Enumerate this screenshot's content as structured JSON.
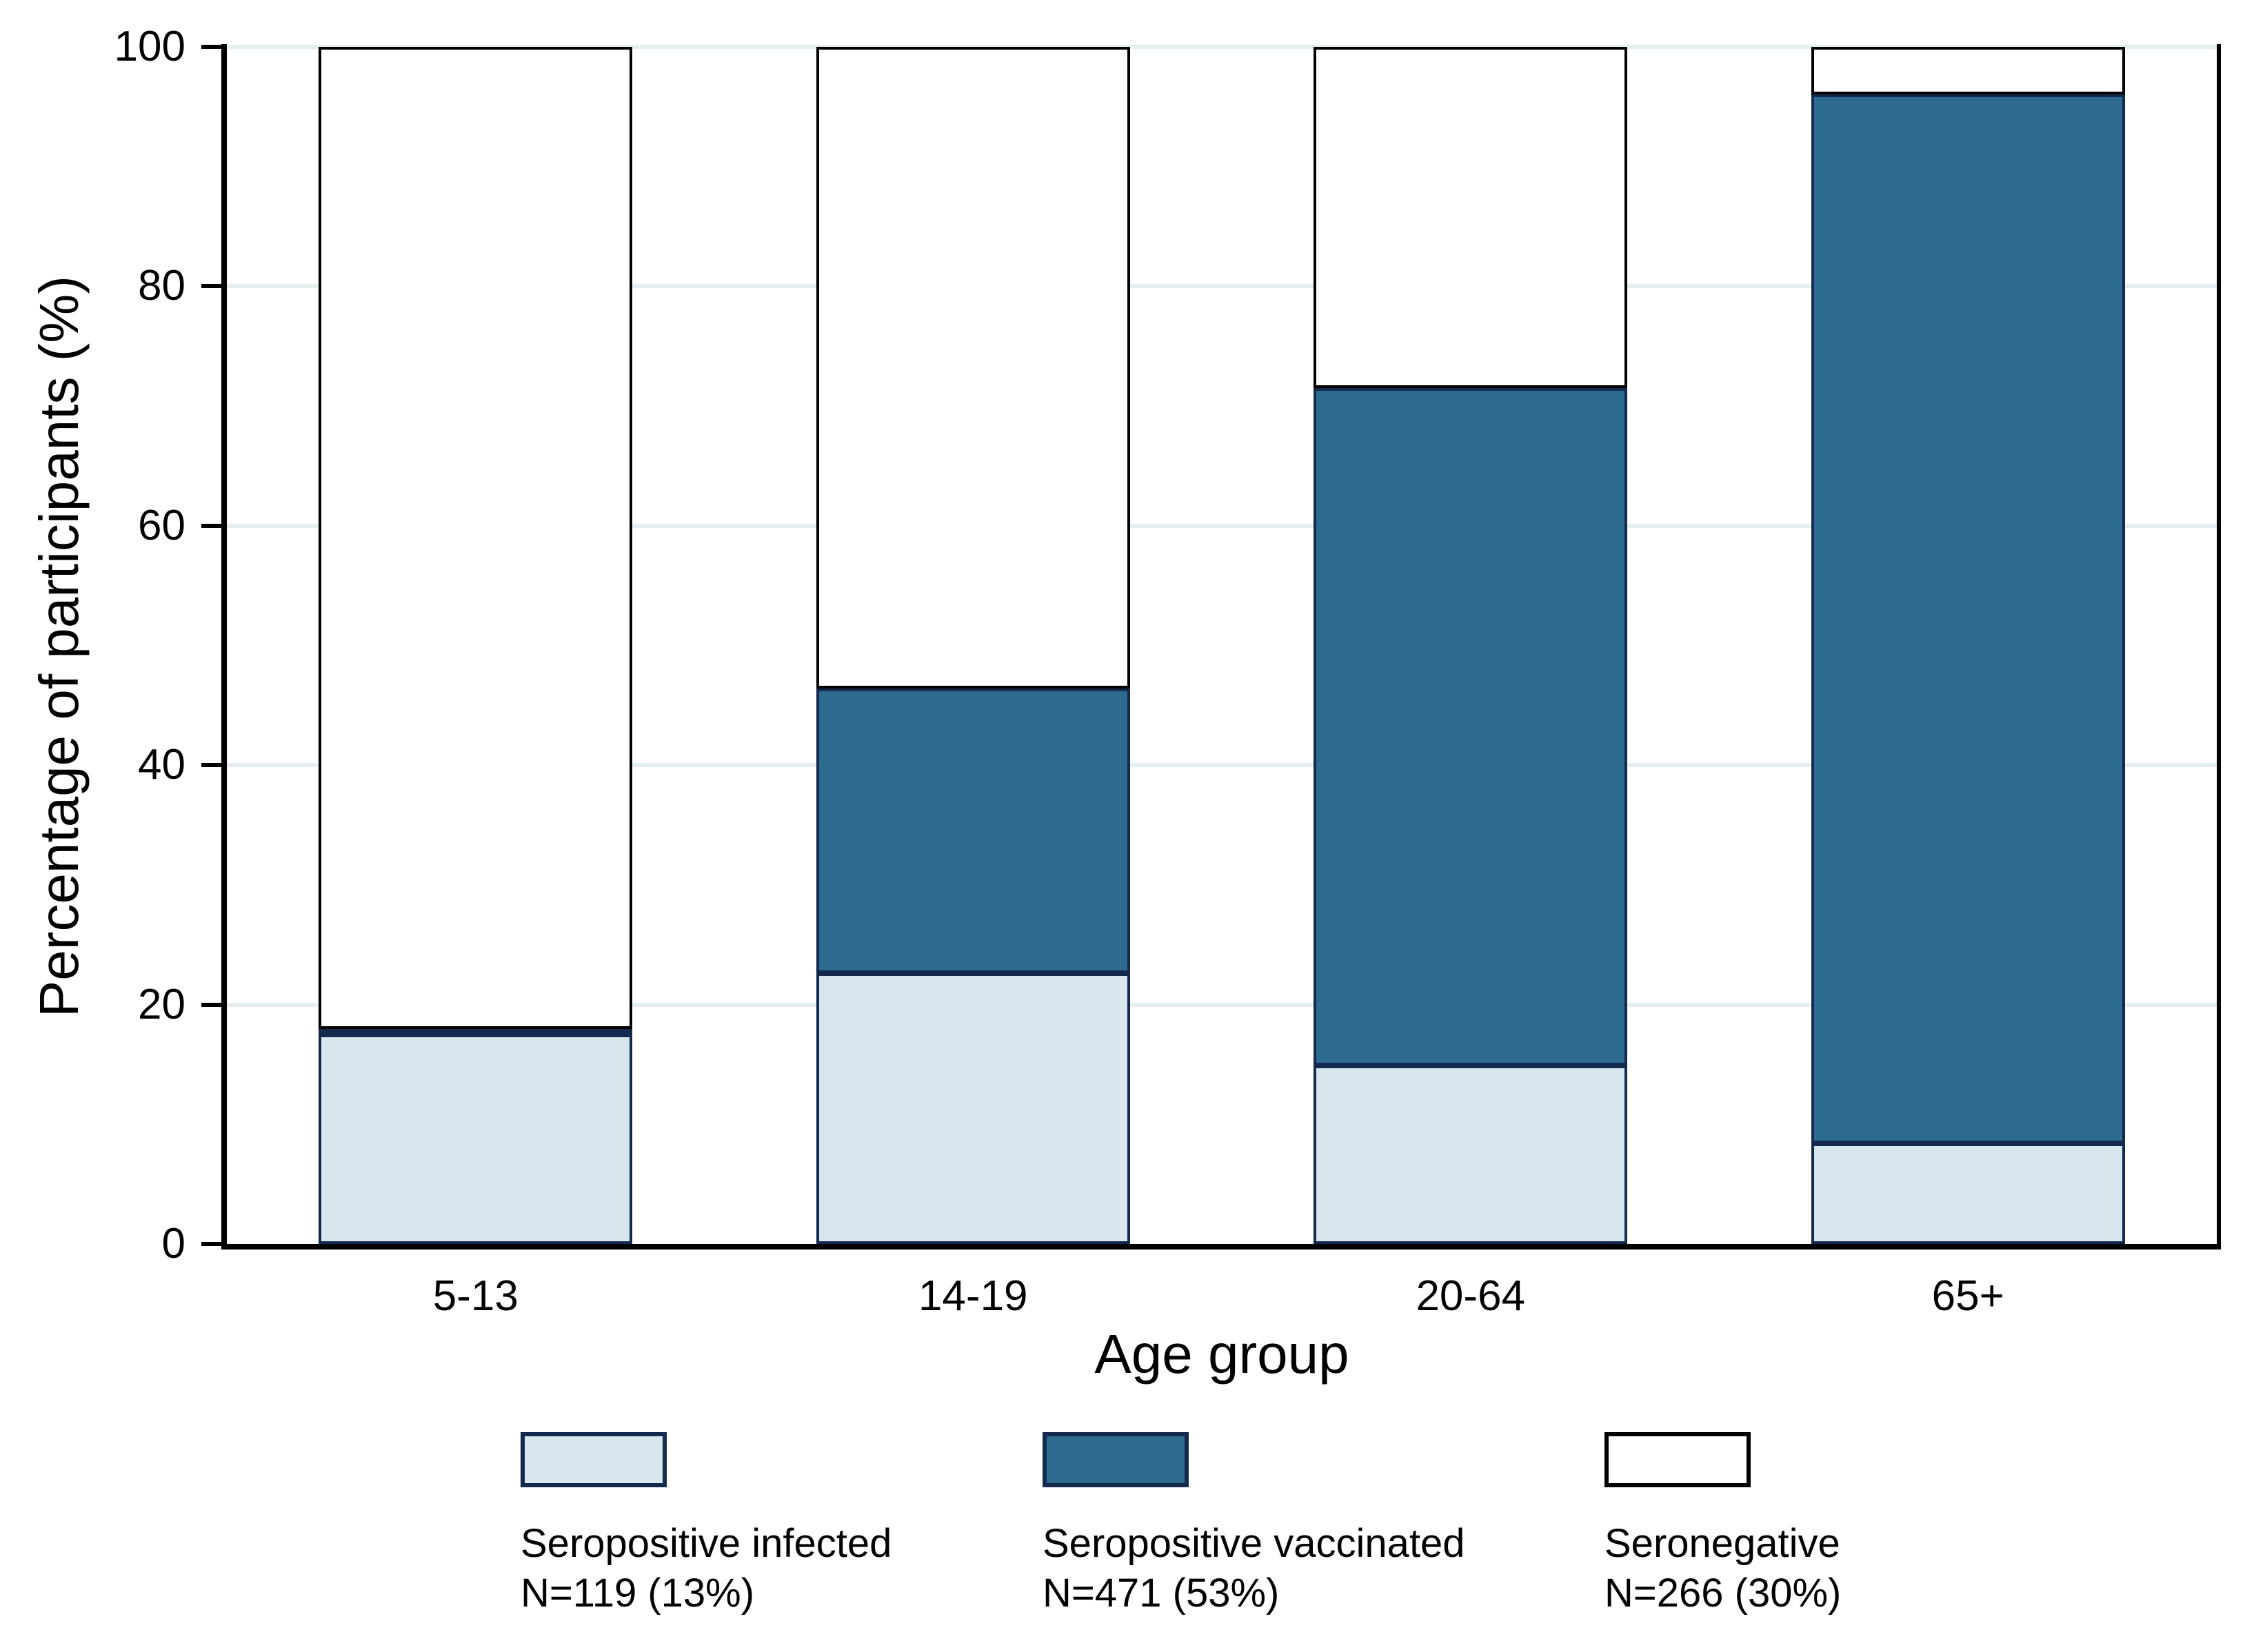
{
  "chart_data": {
    "type": "bar",
    "stacked": true,
    "orientation": "vertical",
    "categories": [
      "5-13",
      "14-19",
      "20-64",
      "65+"
    ],
    "series": [
      {
        "name": "Seropositive infected",
        "n_label": "N=119 (13%)",
        "values": [
          17.5,
          22.6,
          14.9,
          8.4
        ],
        "fill": "#d8e6ee",
        "border": "#13294e"
      },
      {
        "name": "Seropositive vaccinated",
        "n_label": "N=471 (53%)",
        "values": [
          0.4,
          23.8,
          56.6,
          87.6
        ],
        "fill": "#2d6c90",
        "border": "#13294e"
      },
      {
        "name": "Seronegative",
        "n_label": "N=266 (30%)",
        "values": [
          82.1,
          53.6,
          28.5,
          4.0
        ],
        "fill": "#ffffff",
        "border": "#000000"
      }
    ],
    "xlabel": "Age group",
    "ylabel": "Percentage of participants (%)",
    "ylim": [
      0,
      100
    ],
    "yticks": [
      0,
      20,
      40,
      60,
      80,
      100
    ],
    "grid": true,
    "gridline_color": "#e4eff2",
    "axis_color": "#000000",
    "legend_position": "bottom"
  },
  "layout_text": {
    "y_axis_title": "Percentage of participants (%)",
    "x_axis_title": "Age group"
  }
}
